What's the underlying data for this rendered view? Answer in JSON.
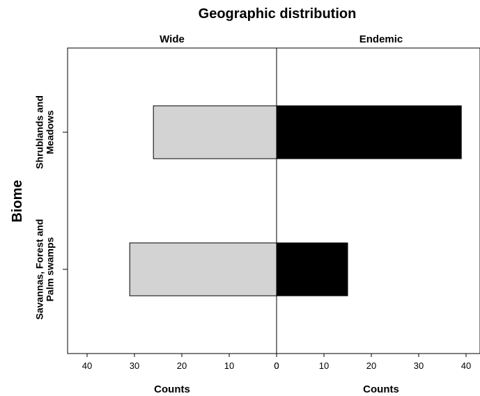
{
  "chart_data": {
    "type": "bar",
    "orientation": "horizontal",
    "layout": "back-to-back population pyramid",
    "title": "Geographic distribution",
    "ylabel": "Biome",
    "panels": [
      {
        "name": "Wide",
        "xlabel": "Counts",
        "direction": "left",
        "xlim": [
          0,
          44
        ],
        "ticks": [
          40,
          30,
          20,
          10,
          0
        ],
        "color": "#d3d3d3"
      },
      {
        "name": "Endemic",
        "xlabel": "Counts",
        "direction": "right",
        "xlim": [
          0,
          43
        ],
        "ticks": [
          0,
          10,
          20,
          30,
          40
        ],
        "color": "#000000"
      }
    ],
    "categories": [
      {
        "label_lines": [
          "Shrublands and",
          "Meadows"
        ]
      },
      {
        "label_lines": [
          "Savannas, Forest and",
          "Palm swamps"
        ]
      }
    ],
    "series": [
      {
        "name": "Wide",
        "values": [
          26,
          31
        ]
      },
      {
        "name": "Endemic",
        "values": [
          39,
          15
        ]
      }
    ],
    "grid": false,
    "legend": "none"
  }
}
